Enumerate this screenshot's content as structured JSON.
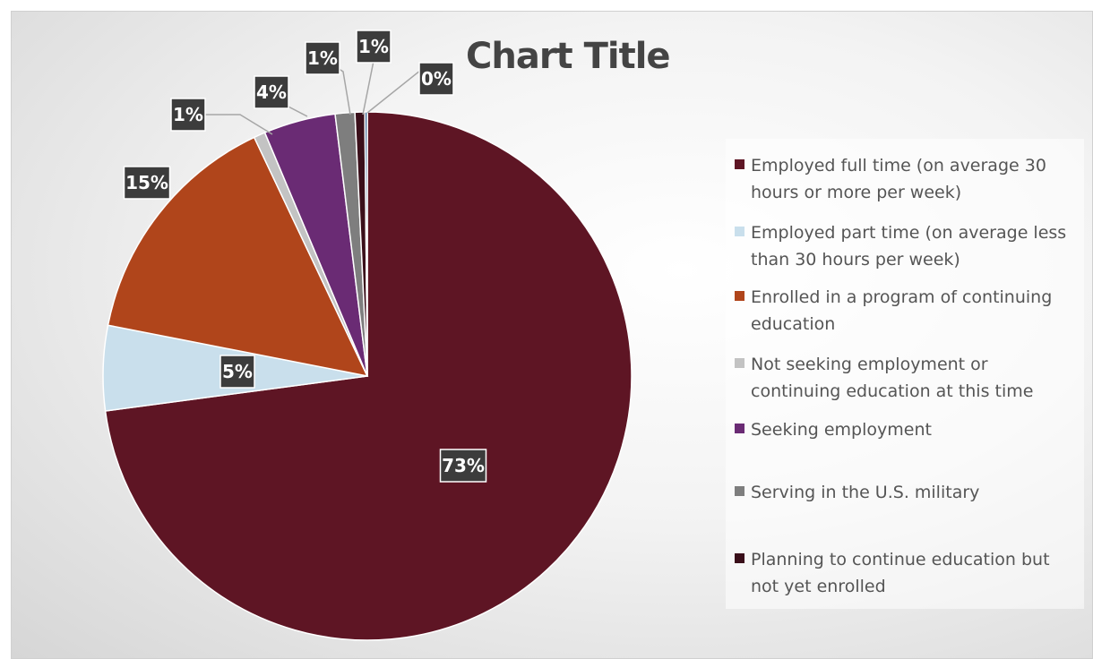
{
  "chart_data": {
    "type": "pie",
    "title": "Chart Title",
    "legend_position": "right",
    "start_angle_deg": 0,
    "slices": [
      {
        "label": "Employed full time (on average 30 hours or more per week)",
        "value": 73.0,
        "display": "73%",
        "color": "#5e1524",
        "label_style": "inside"
      },
      {
        "label": "Employed part time (on average less than 30 hours per week)",
        "value": 5.2,
        "display": "5%",
        "color": "#c9dfec",
        "label_style": "inside"
      },
      {
        "label": "Enrolled in a program of continuing education",
        "value": 14.9,
        "display": "15%",
        "color": "#b0451b",
        "label_style": "outside"
      },
      {
        "label": "Not seeking employment or continuing education at this time",
        "value": 0.7,
        "display": "1%",
        "color": "#c3c3c3",
        "label_style": "leader"
      },
      {
        "label": "Seeking employment",
        "value": 4.4,
        "display": "4%",
        "color": "#6a2b74",
        "label_style": "leader"
      },
      {
        "label": "Serving in the U.S. military",
        "value": 1.2,
        "display": "1%",
        "color": "#7e7e7e",
        "label_style": "leader"
      },
      {
        "label": "Planning to continue education but not yet enrolled",
        "value": 0.6,
        "display": "1%",
        "color": "#3a0f1a",
        "label_style": "leader"
      },
      {
        "label": "",
        "value": 0.15,
        "display": "0%",
        "color": "#2f5d8c",
        "label_style": "leader"
      }
    ]
  }
}
